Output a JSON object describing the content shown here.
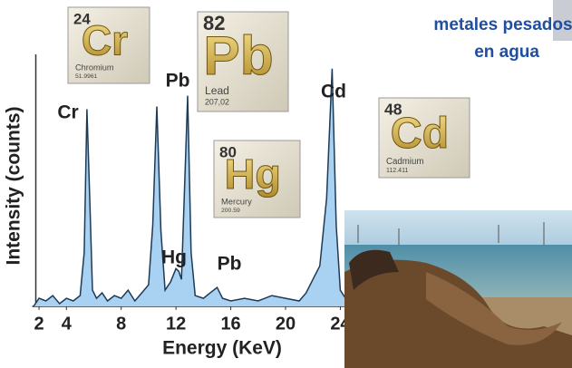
{
  "chart_data": {
    "type": "area",
    "x_label": "Energy (KeV)",
    "y_label": "Intensity (counts)",
    "x": [
      1.6,
      2,
      2.5,
      3,
      3.5,
      4,
      4.5,
      5,
      5.3,
      5.5,
      5.7,
      5.9,
      6.2,
      6.6,
      7,
      7.5,
      8,
      8.5,
      9,
      9.5,
      10,
      10.3,
      10.6,
      10.9,
      11.2,
      11.6,
      12,
      12.2,
      12.4,
      12.6,
      12.85,
      13.1,
      13.4,
      14,
      14.5,
      15,
      15.4,
      16,
      17,
      18,
      19,
      20,
      21,
      21.5,
      22,
      22.5,
      23,
      23.4,
      23.7,
      24,
      24.5
    ],
    "values": [
      0,
      3,
      2,
      4,
      1,
      3,
      2,
      4,
      20,
      73,
      40,
      6,
      3,
      5,
      2,
      4,
      3,
      6,
      2,
      5,
      8,
      30,
      74,
      28,
      6,
      9,
      14,
      13,
      10,
      40,
      78,
      20,
      4,
      3,
      5,
      7,
      3,
      2,
      3,
      2,
      4,
      3,
      2,
      5,
      10,
      15,
      40,
      88,
      30,
      6,
      2
    ],
    "color": "#a9d1f2",
    "line_color": "#1d3a57",
    "xlim": [
      1.5,
      24.5
    ],
    "ylim": [
      0,
      100
    ],
    "xticks": [
      2,
      4,
      8,
      12,
      16,
      20,
      24
    ],
    "annotations": [
      {
        "text": "Cr"
      },
      {
        "text": "Pb"
      },
      {
        "text": "Hg"
      },
      {
        "text": "Pb"
      },
      {
        "text": "Cd"
      }
    ]
  },
  "header": {
    "lines": [
      "metales pesados",
      "en agua"
    ]
  },
  "tiles": [
    {
      "number": "24",
      "symbol": "Cr",
      "name": "Chromium",
      "mass": "51.9961"
    },
    {
      "number": "82",
      "symbol": "Pb",
      "name": "Lead",
      "mass": "207,02"
    },
    {
      "number": "80",
      "symbol": "Hg",
      "name": "Mercury",
      "mass": "200.59"
    },
    {
      "number": "48",
      "symbol": "Cd",
      "name": "Cadmium",
      "mass": "112.411"
    }
  ]
}
